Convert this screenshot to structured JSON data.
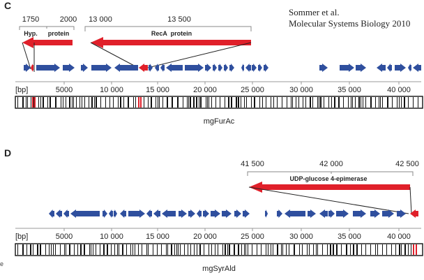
{
  "panel_c": {
    "letter": "C",
    "citation_line1": "Sommer et al.",
    "citation_line2": "Molecular Systems Biology 2010",
    "zoom_left": {
      "ticks": [
        "1750",
        "2000"
      ],
      "gene_labels": [
        "Hyp.",
        "protein"
      ]
    },
    "zoom_right": {
      "ticks": [
        "13 000",
        "13 500"
      ],
      "gene_label": "RecA  protein"
    },
    "axis": {
      "unit_label": "[bp]",
      "ticks": [
        "5000",
        "10 000",
        "15 000",
        "20 000",
        "25 000",
        "30 000",
        "35 000",
        "40 000"
      ]
    },
    "name": "mgFurAc"
  },
  "panel_d": {
    "letter": "D",
    "zoom": {
      "ticks": [
        "41 500",
        "42 000",
        "42 500"
      ],
      "gene_label": "UDP-glucose 4-epimerase"
    },
    "axis": {
      "unit_label": "[bp]",
      "ticks": [
        "5000",
        "10 000",
        "15 000",
        "20 000",
        "25 000",
        "30 000",
        "35 000",
        "40 000"
      ]
    },
    "name": "mgSyrAld"
  },
  "edge_fragment": "e",
  "colors": {
    "gene_blue": "#2f4f9e",
    "highlight_red": "#e0202a",
    "text": "#222222"
  }
}
